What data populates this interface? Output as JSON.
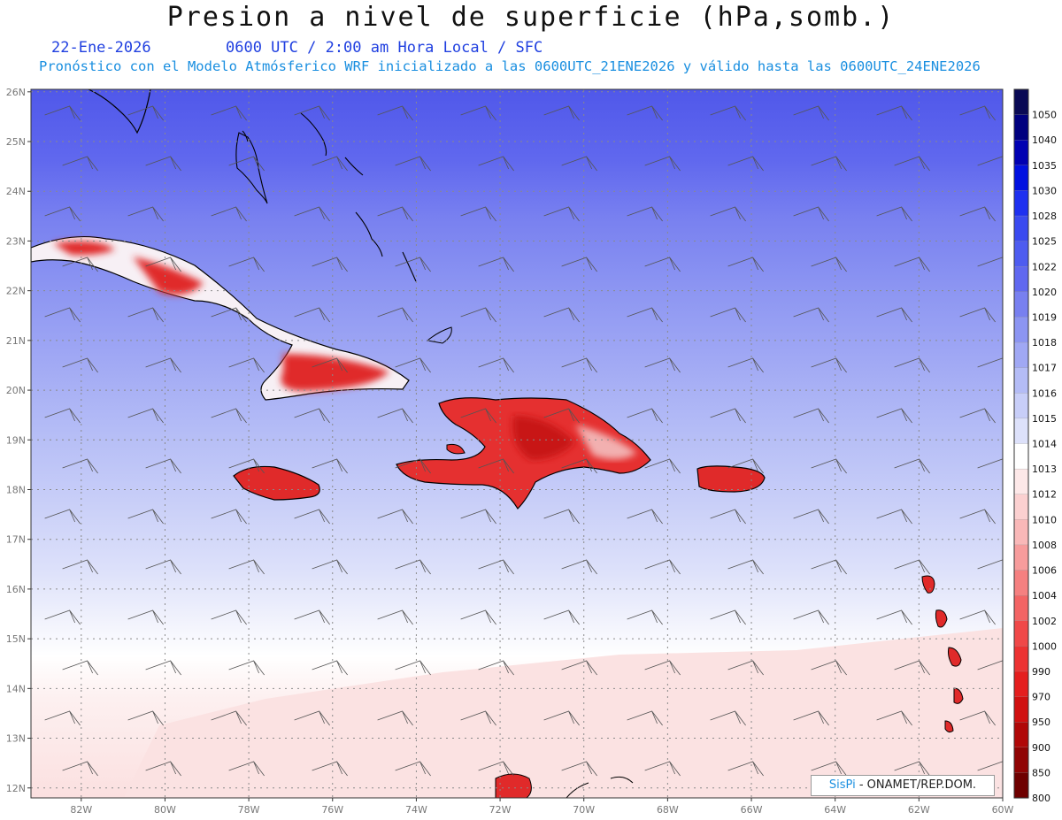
{
  "header": {
    "title": "Presion a nivel de superficie (hPa,somb.)",
    "date": "22-Ene-2026",
    "valid": "0600 UTC / 2:00 am Hora Local / SFC",
    "subtitle": "Pronóstico con el Modelo Atmósferico WRF inicializado a las 0600UTC_21ENE2026 y válido hasta las  0600UTC_24ENE2026"
  },
  "map": {
    "lat_labels": [
      "26N",
      "25N",
      "24N",
      "23N",
      "22N",
      "21N",
      "20N",
      "19N",
      "18N",
      "17N",
      "16N",
      "15N",
      "14N",
      "13N",
      "12N"
    ],
    "lat_values": [
      26,
      25,
      24,
      23,
      22,
      21,
      20,
      19,
      18,
      17,
      16,
      15,
      14,
      13,
      12
    ],
    "lon_labels": [
      "82W",
      "80W",
      "78W",
      "76W",
      "74W",
      "72W",
      "70W",
      "68W",
      "66W",
      "64W",
      "62W",
      "60W"
    ],
    "lon_values": [
      -82,
      -80,
      -78,
      -76,
      -74,
      -72,
      -70,
      -68,
      -66,
      -64,
      -62,
      -60
    ],
    "lat_range": [
      11.8,
      26.05
    ],
    "lon_range": [
      -83.2,
      -60
    ]
  },
  "colorbar": {
    "labels": [
      "1050",
      "1040",
      "1035",
      "1030",
      "1028",
      "1025",
      "1022",
      "1020",
      "1019",
      "1018",
      "1017",
      "1016",
      "1015",
      "1014",
      "1013",
      "1012",
      "1010",
      "1008",
      "1006",
      "1004",
      "1002",
      "1000",
      "990",
      "970",
      "950",
      "900",
      "850",
      "800"
    ],
    "colors": [
      "#0a0a55",
      "#00007f",
      "#0000b2",
      "#0010e0",
      "#1e30f0",
      "#3a4af0",
      "#4e5cf0",
      "#6068f0",
      "#7880f0",
      "#8c95f2",
      "#a0a8f4",
      "#b4bcf6",
      "#c8cef8",
      "#dde1fa",
      "#ffffff",
      "#fde8e8",
      "#fbd0d0",
      "#f9b8b8",
      "#f79c9c",
      "#f58080",
      "#f36464",
      "#f04848",
      "#ec3232",
      "#e41e1e",
      "#d01010",
      "#b00808",
      "#900404",
      "#6e0000"
    ]
  },
  "credit": {
    "brand": "SisPi",
    "org": "- ONAMET/REP.DOM."
  }
}
